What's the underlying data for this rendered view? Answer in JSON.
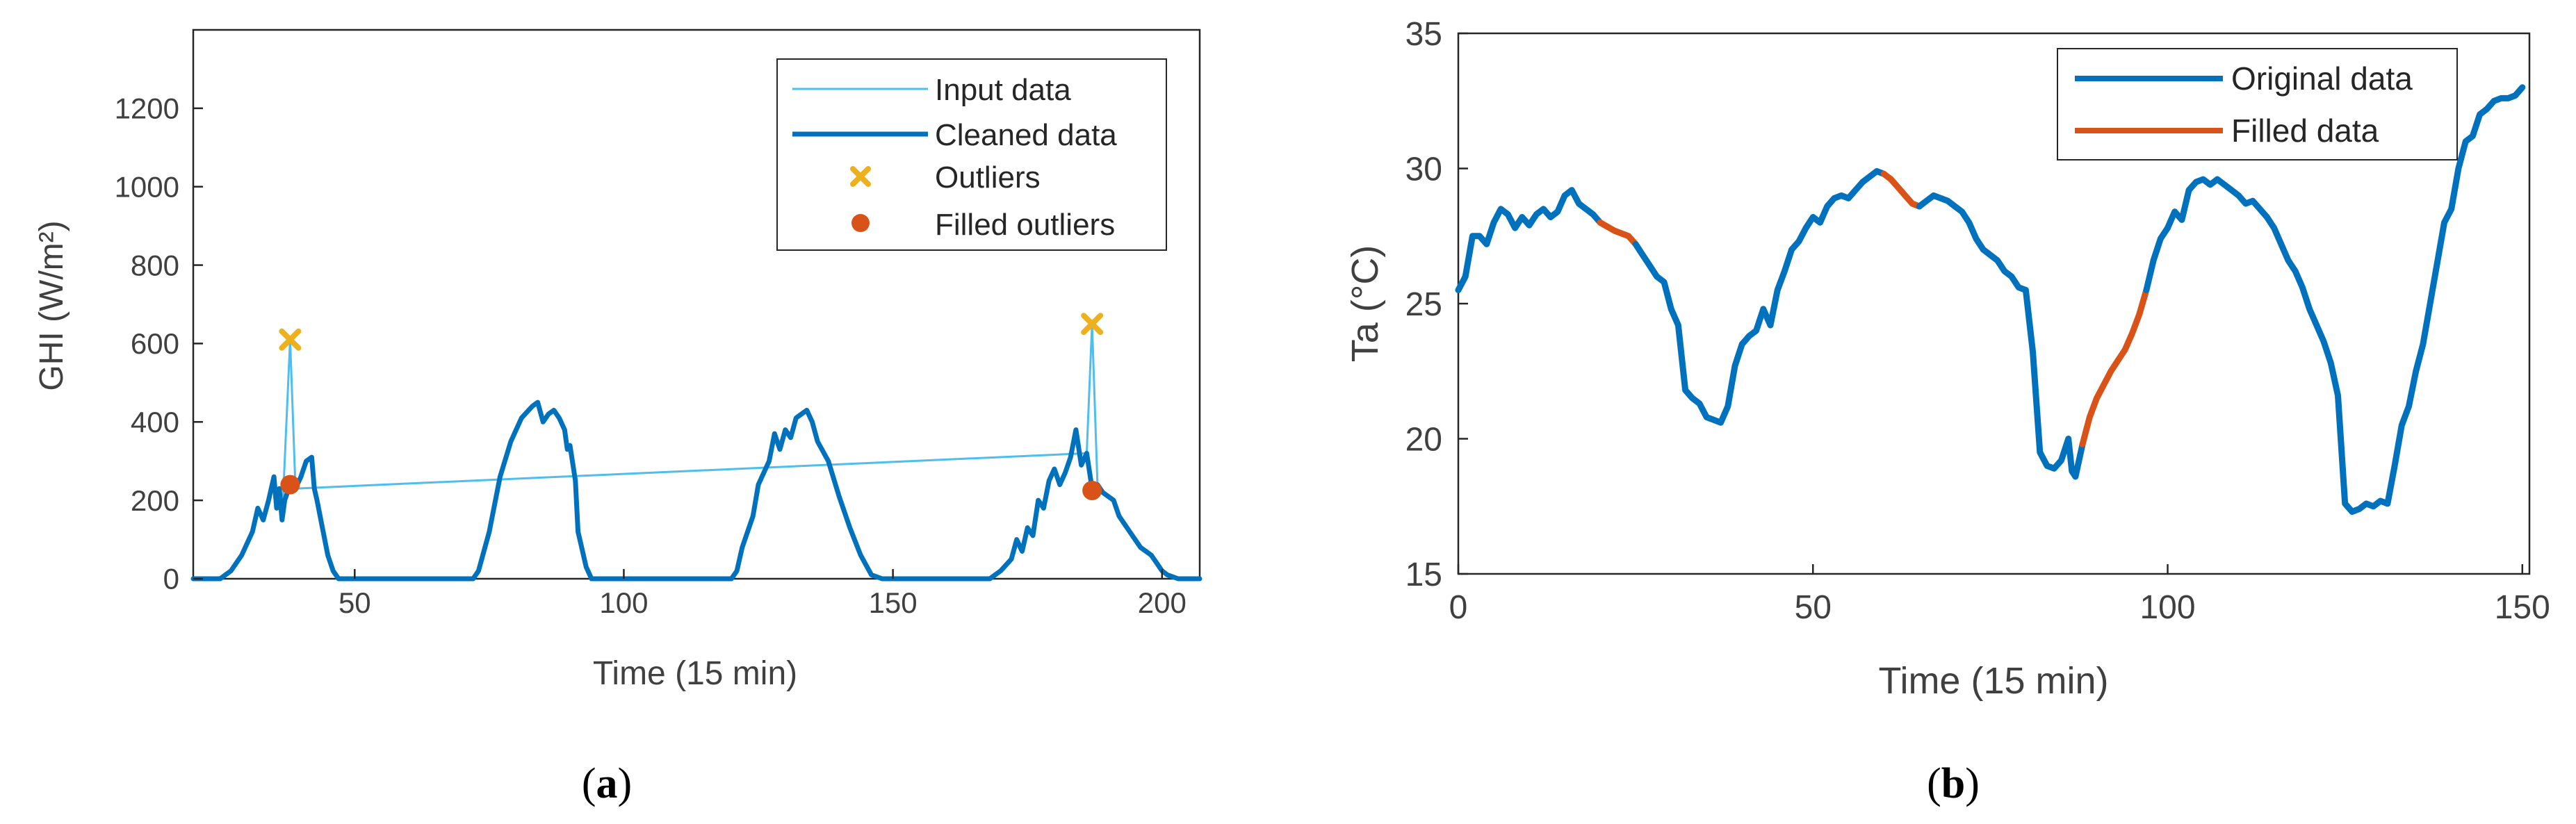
{
  "colors": {
    "input": "#4DBEEE",
    "cleaned": "#0072BD",
    "outlier": "#EDB120",
    "filled": "#D95319",
    "axis": "#262626",
    "text": "#404040"
  },
  "chart_data": [
    {
      "id": "a",
      "type": "line",
      "caption": "a",
      "xlabel": "Time (15 min)",
      "ylabel": "GHI (W/m²)",
      "xlim": [
        20,
        207
      ],
      "ylim": [
        0,
        1400
      ],
      "xticks": [
        50,
        100,
        150,
        200
      ],
      "yticks": [
        0,
        200,
        400,
        600,
        800,
        1000,
        1200
      ],
      "legend": {
        "placement": "top-right",
        "entries": [
          "Input data",
          "Cleaned data",
          "Outliers",
          "Filled outliers"
        ]
      },
      "series": [
        {
          "name": "Cleaned data",
          "points": [
            [
              20,
              0
            ],
            [
              25,
              0
            ],
            [
              27,
              20
            ],
            [
              29,
              60
            ],
            [
              31,
              120
            ],
            [
              32,
              180
            ],
            [
              33,
              150
            ],
            [
              34,
              200
            ],
            [
              35,
              260
            ],
            [
              35.5,
              180
            ],
            [
              36,
              230
            ],
            [
              36.5,
              150
            ],
            [
              37,
              200
            ],
            [
              38,
              240
            ],
            [
              39,
              230
            ],
            [
              40,
              260
            ],
            [
              40.5,
              280
            ],
            [
              41,
              300
            ],
            [
              42,
              310
            ],
            [
              42.5,
              230
            ],
            [
              43,
              200
            ],
            [
              44,
              130
            ],
            [
              45,
              60
            ],
            [
              46,
              20
            ],
            [
              47,
              0
            ],
            [
              72,
              0
            ],
            [
              73,
              20
            ],
            [
              75,
              120
            ],
            [
              77,
              260
            ],
            [
              79,
              350
            ],
            [
              81,
              410
            ],
            [
              83,
              440
            ],
            [
              84,
              450
            ],
            [
              85,
              400
            ],
            [
              86,
              420
            ],
            [
              87,
              430
            ],
            [
              88,
              410
            ],
            [
              89,
              380
            ],
            [
              89.5,
              330
            ],
            [
              90,
              340
            ],
            [
              91,
              250
            ],
            [
              91.5,
              120
            ],
            [
              92,
              90
            ],
            [
              93,
              30
            ],
            [
              94,
              0
            ],
            [
              120,
              0
            ],
            [
              121,
              20
            ],
            [
              122,
              80
            ],
            [
              124,
              160
            ],
            [
              125,
              240
            ],
            [
              127,
              300
            ],
            [
              128,
              370
            ],
            [
              129,
              330
            ],
            [
              130,
              380
            ],
            [
              131,
              360
            ],
            [
              132,
              410
            ],
            [
              133,
              420
            ],
            [
              134,
              430
            ],
            [
              135,
              400
            ],
            [
              136,
              350
            ],
            [
              138,
              300
            ],
            [
              140,
              210
            ],
            [
              142,
              130
            ],
            [
              144,
              60
            ],
            [
              146,
              10
            ],
            [
              148,
              0
            ],
            [
              168,
              0
            ],
            [
              170,
              20
            ],
            [
              172,
              50
            ],
            [
              173,
              100
            ],
            [
              174,
              70
            ],
            [
              175,
              130
            ],
            [
              176,
              110
            ],
            [
              177,
              200
            ],
            [
              178,
              180
            ],
            [
              179,
              250
            ],
            [
              180,
              280
            ],
            [
              181,
              240
            ],
            [
              182,
              270
            ],
            [
              183,
              310
            ],
            [
              184,
              380
            ],
            [
              185,
              290
            ],
            [
              186,
              320
            ],
            [
              187,
              230
            ],
            [
              188,
              240
            ],
            [
              189,
              220
            ],
            [
              190,
              210
            ],
            [
              191,
              200
            ],
            [
              192,
              160
            ],
            [
              193,
              140
            ],
            [
              194,
              120
            ],
            [
              195,
              100
            ],
            [
              196,
              80
            ],
            [
              197,
              70
            ],
            [
              198,
              60
            ],
            [
              199,
              40
            ],
            [
              200,
              20
            ],
            [
              201,
              10
            ],
            [
              203,
              0
            ],
            [
              207,
              0
            ]
          ]
        },
        {
          "name": "Input data",
          "points": [
            [
              36.5,
              150
            ],
            [
              38,
              610
            ],
            [
              39,
              230
            ],
            [
              186,
              320
            ],
            [
              187,
              650
            ],
            [
              188,
              240
            ]
          ]
        },
        {
          "name": "Outliers",
          "points": [
            [
              38,
              610
            ],
            [
              187,
              650
            ]
          ]
        },
        {
          "name": "Filled outliers",
          "points": [
            [
              38,
              240
            ],
            [
              187,
              225
            ]
          ]
        }
      ]
    },
    {
      "id": "b",
      "type": "line",
      "caption": "b",
      "xlabel": "Time (15 min)",
      "ylabel": "Ta (°C)",
      "xlim": [
        0,
        151
      ],
      "ylim": [
        15,
        35
      ],
      "xticks": [
        0,
        50,
        100,
        150
      ],
      "yticks": [
        15,
        20,
        25,
        30,
        35
      ],
      "legend": {
        "placement": "top-right",
        "entries": [
          "Original data",
          "Filled data"
        ]
      },
      "series": [
        {
          "name": "Original data",
          "points": [
            [
              0,
              25.5
            ],
            [
              1,
              26
            ],
            [
              2,
              27.5
            ],
            [
              3,
              27.5
            ],
            [
              4,
              27.2
            ],
            [
              5,
              28
            ],
            [
              6,
              28.5
            ],
            [
              7,
              28.3
            ],
            [
              8,
              27.8
            ],
            [
              9,
              28.2
            ],
            [
              10,
              27.9
            ],
            [
              11,
              28.3
            ],
            [
              12,
              28.5
            ],
            [
              13,
              28.2
            ],
            [
              14,
              28.4
            ],
            [
              15,
              29
            ],
            [
              16,
              29.2
            ],
            [
              17,
              28.7
            ],
            [
              18,
              28.5
            ],
            [
              19,
              28.3
            ],
            [
              20,
              28
            ]
          ]
        },
        {
          "name": "Filled data",
          "points": [
            [
              20,
              28
            ],
            [
              22,
              27.7
            ],
            [
              24,
              27.5
            ],
            [
              25,
              27.2
            ]
          ]
        },
        {
          "name": "Original data",
          "points": [
            [
              25,
              27.2
            ],
            [
              26,
              26.8
            ],
            [
              27,
              26.4
            ],
            [
              28,
              26
            ],
            [
              29,
              25.8
            ],
            [
              30,
              24.8
            ],
            [
              31,
              24.2
            ],
            [
              32,
              21.8
            ],
            [
              33,
              21.5
            ],
            [
              34,
              21.3
            ],
            [
              35,
              20.8
            ],
            [
              36,
              20.7
            ],
            [
              37,
              20.6
            ],
            [
              38,
              21.2
            ],
            [
              39,
              22.7
            ],
            [
              40,
              23.5
            ],
            [
              41,
              23.8
            ],
            [
              42,
              24
            ],
            [
              43,
              24.8
            ],
            [
              44,
              24.2
            ],
            [
              45,
              25.5
            ],
            [
              46,
              26.2
            ],
            [
              47,
              27
            ],
            [
              48,
              27.3
            ],
            [
              49,
              27.8
            ],
            [
              50,
              28.2
            ],
            [
              51,
              28
            ],
            [
              52,
              28.6
            ],
            [
              53,
              28.9
            ],
            [
              54,
              29
            ],
            [
              55,
              28.9
            ],
            [
              56,
              29.2
            ],
            [
              57,
              29.5
            ],
            [
              58,
              29.7
            ],
            [
              59,
              29.9
            ],
            [
              60,
              29.8
            ]
          ]
        },
        {
          "name": "Filled data",
          "points": [
            [
              60,
              29.8
            ],
            [
              61,
              29.6
            ],
            [
              62,
              29.3
            ],
            [
              63,
              29
            ],
            [
              64,
              28.7
            ],
            [
              65,
              28.6
            ]
          ]
        },
        {
          "name": "Original data",
          "points": [
            [
              65,
              28.6
            ],
            [
              66,
              28.8
            ],
            [
              67,
              29
            ],
            [
              68,
              28.9
            ],
            [
              69,
              28.8
            ],
            [
              70,
              28.6
            ],
            [
              71,
              28.4
            ],
            [
              72,
              28
            ],
            [
              73,
              27.4
            ],
            [
              74,
              27
            ],
            [
              75,
              26.8
            ],
            [
              76,
              26.6
            ],
            [
              77,
              26.2
            ],
            [
              78,
              26
            ],
            [
              79,
              25.6
            ],
            [
              80,
              25.5
            ],
            [
              81,
              23.2
            ],
            [
              82,
              19.5
            ],
            [
              83,
              19
            ],
            [
              84,
              18.9
            ],
            [
              85,
              19.2
            ],
            [
              86,
              20
            ],
            [
              86.5,
              18.8
            ],
            [
              87,
              18.6
            ],
            [
              88,
              19.8
            ]
          ]
        },
        {
          "name": "Filled data",
          "points": [
            [
              88,
              19.8
            ],
            [
              89,
              20.8
            ],
            [
              90,
              21.5
            ],
            [
              91,
              22
            ],
            [
              92,
              22.5
            ],
            [
              93,
              22.9
            ],
            [
              94,
              23.3
            ],
            [
              95,
              23.9
            ],
            [
              96,
              24.6
            ],
            [
              97,
              25.5
            ]
          ]
        },
        {
          "name": "Original data",
          "points": [
            [
              97,
              25.5
            ],
            [
              98,
              26.6
            ],
            [
              99,
              27.4
            ],
            [
              100,
              27.8
            ],
            [
              101,
              28.4
            ],
            [
              102,
              28.1
            ],
            [
              103,
              29.2
            ],
            [
              104,
              29.5
            ],
            [
              105,
              29.6
            ],
            [
              106,
              29.4
            ],
            [
              107,
              29.6
            ],
            [
              108,
              29.4
            ],
            [
              109,
              29.2
            ],
            [
              110,
              29
            ],
            [
              111,
              28.7
            ],
            [
              112,
              28.8
            ],
            [
              113,
              28.5
            ],
            [
              114,
              28.2
            ],
            [
              115,
              27.8
            ],
            [
              116,
              27.2
            ],
            [
              117,
              26.6
            ],
            [
              118,
              26.2
            ],
            [
              119,
              25.6
            ],
            [
              120,
              24.8
            ],
            [
              121,
              24.2
            ],
            [
              122,
              23.6
            ],
            [
              123,
              22.8
            ],
            [
              124,
              21.6
            ],
            [
              125,
              17.6
            ],
            [
              126,
              17.3
            ],
            [
              127,
              17.4
            ],
            [
              128,
              17.6
            ],
            [
              129,
              17.5
            ],
            [
              130,
              17.7
            ],
            [
              131,
              17.6
            ],
            [
              132,
              19
            ],
            [
              133,
              20.5
            ],
            [
              134,
              21.2
            ],
            [
              135,
              22.5
            ],
            [
              136,
              23.5
            ],
            [
              137,
              25
            ],
            [
              138,
              26.5
            ],
            [
              139,
              28
            ],
            [
              140,
              28.5
            ],
            [
              141,
              30
            ],
            [
              142,
              31
            ],
            [
              143,
              31.2
            ],
            [
              144,
              32
            ],
            [
              145,
              32.2
            ],
            [
              146,
              32.5
            ],
            [
              147,
              32.6
            ],
            [
              148,
              32.6
            ],
            [
              149,
              32.7
            ],
            [
              150,
              33
            ]
          ]
        }
      ]
    }
  ]
}
